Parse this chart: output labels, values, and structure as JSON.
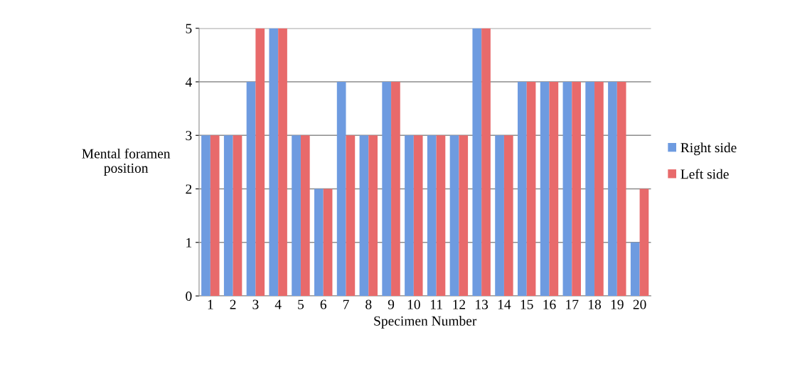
{
  "chart_data": {
    "type": "bar",
    "xlabel": "Specimen Number",
    "ylabel": "Mental foramen\nposition",
    "categories": [
      "1",
      "2",
      "3",
      "4",
      "5",
      "6",
      "7",
      "8",
      "9",
      "10",
      "11",
      "12",
      "13",
      "14",
      "15",
      "16",
      "17",
      "18",
      "19",
      "20"
    ],
    "series": [
      {
        "name": "Right side",
        "color": "#6e9be0",
        "values": [
          3,
          3,
          4,
          5,
          3,
          2,
          4,
          3,
          4,
          3,
          3,
          3,
          5,
          3,
          4,
          4,
          4,
          4,
          4,
          1
        ]
      },
      {
        "name": "Left side",
        "color": "#e86a6b",
        "values": [
          3,
          3,
          5,
          5,
          3,
          2,
          3,
          3,
          4,
          3,
          3,
          3,
          5,
          3,
          4,
          4,
          4,
          4,
          4,
          2
        ]
      }
    ],
    "ylim": [
      0,
      5
    ],
    "yticks": [
      0,
      1,
      2,
      3,
      4,
      5
    ],
    "grid": "y",
    "legend": "right"
  }
}
